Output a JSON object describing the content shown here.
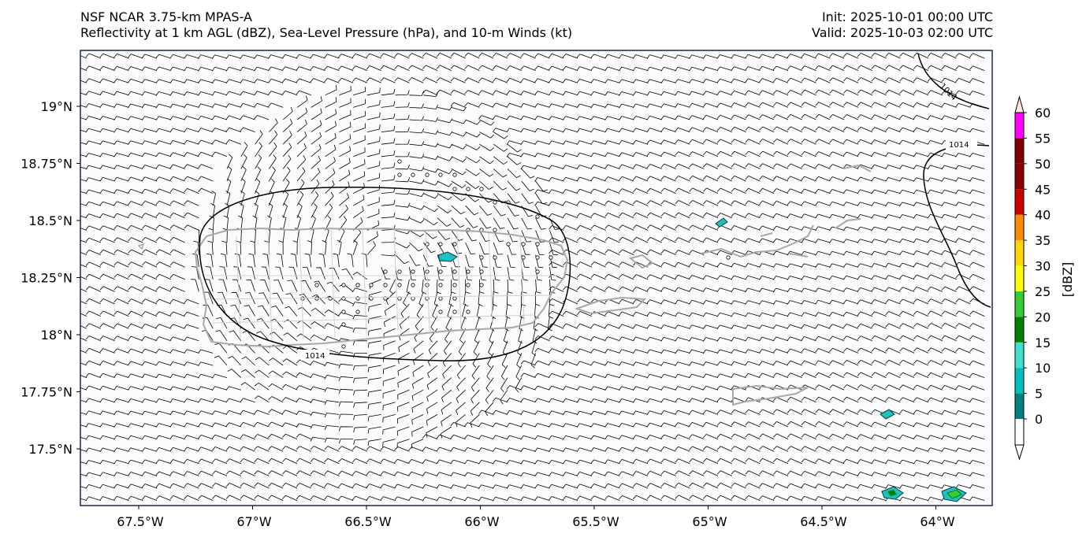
{
  "header": {
    "title_line1": "NSF NCAR 3.75-km MPAS-A",
    "title_line2": "Reflectivity at 1 km AGL (dBZ), Sea-Level Pressure (hPa), and 10-m Winds (kt)",
    "init": "Init: 2025-10-01 00:00 UTC",
    "valid": "Valid: 2025-10-03 02:00 UTC"
  },
  "map": {
    "lon_range": [
      -67.78,
      -63.78
    ],
    "lat_range": [
      17.24,
      19.25
    ],
    "lon_ticks": [
      "67.5°W",
      "67°W",
      "66.5°W",
      "66°W",
      "65.5°W",
      "65°W",
      "64.5°W",
      "64°W"
    ],
    "lat_ticks": [
      "19°N",
      "18.75°N",
      "18.5°N",
      "18.25°N",
      "18°N",
      "17.75°N",
      "17.5°N"
    ],
    "contour_labels": [
      "1014",
      "1014",
      "1014"
    ]
  },
  "colorbar": {
    "label": "[dBZ]",
    "ticks": [
      "0",
      "5",
      "10",
      "15",
      "20",
      "25",
      "30",
      "35",
      "40",
      "45",
      "50",
      "55",
      "60"
    ],
    "colors": [
      "#008080",
      "#00c0c0",
      "#40e0d0",
      "#008000",
      "#32cd32",
      "#ffff00",
      "#ffd700",
      "#ff8c00",
      "#cc0000",
      "#8b0000",
      "#800000",
      "#ff00ff",
      "#ffe4e1"
    ]
  }
}
